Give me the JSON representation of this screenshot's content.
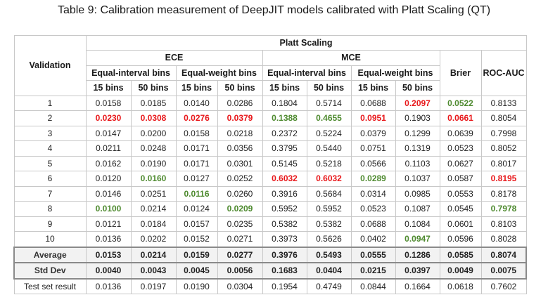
{
  "caption": "Table 9: Calibration measurement of DeepJIT models calibrated with Platt Scaling (QT)",
  "header": {
    "validation": "Validation",
    "platt_scaling": "Platt Scaling",
    "ece": "ECE",
    "mce": "MCE",
    "brier": "Brier",
    "roc_auc": "ROC-AUC",
    "equal_interval": "Equal-interval bins",
    "equal_weight": "Equal-weight bins",
    "bins15": "15 bins",
    "bins50": "50 bins"
  },
  "colors": {
    "best": "#4e8a2f",
    "worst": "#e8171a"
  },
  "rows": [
    {
      "label": "1",
      "cells": [
        {
          "v": "0.0158"
        },
        {
          "v": "0.0185"
        },
        {
          "v": "0.0140"
        },
        {
          "v": "0.0286"
        },
        {
          "v": "0.1804"
        },
        {
          "v": "0.5714"
        },
        {
          "v": "0.0688"
        },
        {
          "v": "0.2097",
          "h": "red"
        },
        {
          "v": "0.0522",
          "h": "green"
        },
        {
          "v": "0.8133"
        }
      ]
    },
    {
      "label": "2",
      "cells": [
        {
          "v": "0.0230",
          "h": "red"
        },
        {
          "v": "0.0308",
          "h": "red"
        },
        {
          "v": "0.0276",
          "h": "red"
        },
        {
          "v": "0.0379",
          "h": "red"
        },
        {
          "v": "0.1388",
          "h": "green"
        },
        {
          "v": "0.4655",
          "h": "green"
        },
        {
          "v": "0.0951",
          "h": "red"
        },
        {
          "v": "0.1903"
        },
        {
          "v": "0.0661",
          "h": "red"
        },
        {
          "v": "0.8054"
        }
      ]
    },
    {
      "label": "3",
      "cells": [
        {
          "v": "0.0147"
        },
        {
          "v": "0.0200"
        },
        {
          "v": "0.0158"
        },
        {
          "v": "0.0218"
        },
        {
          "v": "0.2372"
        },
        {
          "v": "0.5224"
        },
        {
          "v": "0.0379"
        },
        {
          "v": "0.1299"
        },
        {
          "v": "0.0639"
        },
        {
          "v": "0.7998"
        }
      ]
    },
    {
      "label": "4",
      "cells": [
        {
          "v": "0.0211"
        },
        {
          "v": "0.0248"
        },
        {
          "v": "0.0171"
        },
        {
          "v": "0.0356"
        },
        {
          "v": "0.3795"
        },
        {
          "v": "0.5440"
        },
        {
          "v": "0.0751"
        },
        {
          "v": "0.1319"
        },
        {
          "v": "0.0523"
        },
        {
          "v": "0.8052"
        }
      ]
    },
    {
      "label": "5",
      "cells": [
        {
          "v": "0.0162"
        },
        {
          "v": "0.0190"
        },
        {
          "v": "0.0171"
        },
        {
          "v": "0.0301"
        },
        {
          "v": "0.5145"
        },
        {
          "v": "0.5218"
        },
        {
          "v": "0.0566"
        },
        {
          "v": "0.1103"
        },
        {
          "v": "0.0627"
        },
        {
          "v": "0.8017"
        }
      ]
    },
    {
      "label": "6",
      "cells": [
        {
          "v": "0.0120"
        },
        {
          "v": "0.0160",
          "h": "green"
        },
        {
          "v": "0.0127"
        },
        {
          "v": "0.0252"
        },
        {
          "v": "0.6032",
          "h": "red"
        },
        {
          "v": "0.6032",
          "h": "red"
        },
        {
          "v": "0.0289",
          "h": "green"
        },
        {
          "v": "0.1037"
        },
        {
          "v": "0.0587"
        },
        {
          "v": "0.8195",
          "h": "red"
        }
      ]
    },
    {
      "label": "7",
      "cells": [
        {
          "v": "0.0146"
        },
        {
          "v": "0.0251"
        },
        {
          "v": "0.0116",
          "h": "green"
        },
        {
          "v": "0.0260"
        },
        {
          "v": "0.3916"
        },
        {
          "v": "0.5684"
        },
        {
          "v": "0.0314"
        },
        {
          "v": "0.0985"
        },
        {
          "v": "0.0553"
        },
        {
          "v": "0.8178"
        }
      ]
    },
    {
      "label": "8",
      "cells": [
        {
          "v": "0.0100",
          "h": "green"
        },
        {
          "v": "0.0214"
        },
        {
          "v": "0.0124"
        },
        {
          "v": "0.0209",
          "h": "green"
        },
        {
          "v": "0.5952"
        },
        {
          "v": "0.5952"
        },
        {
          "v": "0.0523"
        },
        {
          "v": "0.1087"
        },
        {
          "v": "0.0545"
        },
        {
          "v": "0.7978",
          "h": "green"
        }
      ]
    },
    {
      "label": "9",
      "cells": [
        {
          "v": "0.0121"
        },
        {
          "v": "0.0184"
        },
        {
          "v": "0.0157"
        },
        {
          "v": "0.0235"
        },
        {
          "v": "0.5382"
        },
        {
          "v": "0.5382"
        },
        {
          "v": "0.0688"
        },
        {
          "v": "0.1084"
        },
        {
          "v": "0.0601"
        },
        {
          "v": "0.8103"
        }
      ]
    },
    {
      "label": "10",
      "cells": [
        {
          "v": "0.0136"
        },
        {
          "v": "0.0202"
        },
        {
          "v": "0.0152"
        },
        {
          "v": "0.0271"
        },
        {
          "v": "0.3973"
        },
        {
          "v": "0.5626"
        },
        {
          "v": "0.0402"
        },
        {
          "v": "0.0947",
          "h": "green"
        },
        {
          "v": "0.0596"
        },
        {
          "v": "0.8028"
        }
      ]
    }
  ],
  "summary": [
    {
      "label": "Average",
      "cells": [
        {
          "v": "0.0153"
        },
        {
          "v": "0.0214"
        },
        {
          "v": "0.0159"
        },
        {
          "v": "0.0277"
        },
        {
          "v": "0.3976"
        },
        {
          "v": "0.5493"
        },
        {
          "v": "0.0555"
        },
        {
          "v": "0.1286"
        },
        {
          "v": "0.0585"
        },
        {
          "v": "0.8074"
        }
      ]
    },
    {
      "label": "Std Dev",
      "cells": [
        {
          "v": "0.0040"
        },
        {
          "v": "0.0043"
        },
        {
          "v": "0.0045"
        },
        {
          "v": "0.0056"
        },
        {
          "v": "0.1683"
        },
        {
          "v": "0.0404"
        },
        {
          "v": "0.0215"
        },
        {
          "v": "0.0397"
        },
        {
          "v": "0.0049"
        },
        {
          "v": "0.0075"
        }
      ]
    }
  ],
  "test": {
    "label": "Test set result",
    "cells": [
      {
        "v": "0.0136"
      },
      {
        "v": "0.0197"
      },
      {
        "v": "0.0190"
      },
      {
        "v": "0.0304"
      },
      {
        "v": "0.1954"
      },
      {
        "v": "0.4749"
      },
      {
        "v": "0.0844"
      },
      {
        "v": "0.1664"
      },
      {
        "v": "0.0618"
      },
      {
        "v": "0.7602"
      }
    ]
  }
}
